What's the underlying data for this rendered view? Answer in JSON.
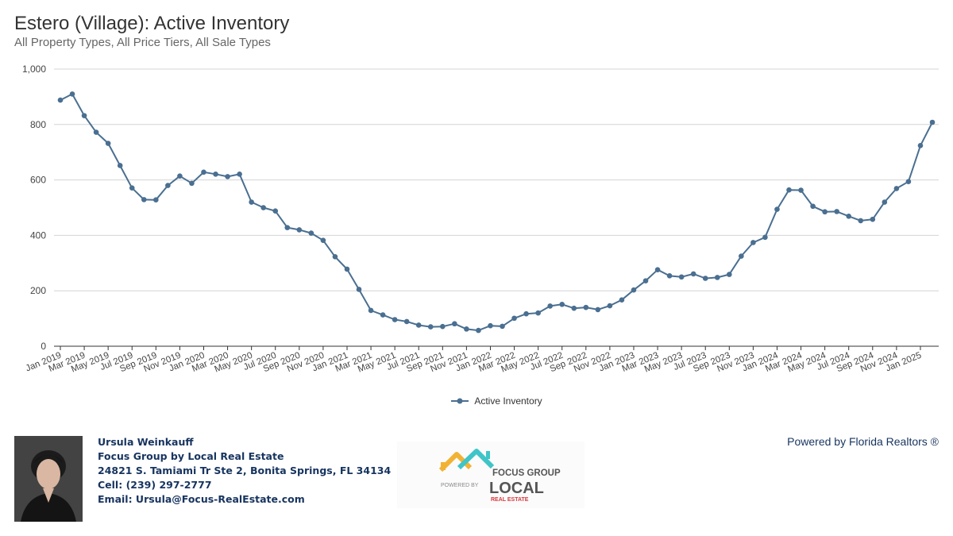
{
  "header": {
    "title": "Estero (Village): Active Inventory",
    "subtitle": "All Property Types, All Price Tiers, All Sale Types"
  },
  "chart_data": {
    "type": "line",
    "title": "Estero (Village): Active Inventory",
    "subtitle": "All Property Types, All Price Tiers, All Sale Types",
    "xlabel": "",
    "ylabel": "",
    "ylim": [
      0,
      1000
    ],
    "yticks": [
      0,
      200,
      400,
      600,
      800,
      1000
    ],
    "ytick_labels": [
      "0",
      "200",
      "400",
      "600",
      "800",
      "1,000"
    ],
    "grid": true,
    "legend_position": "bottom-center",
    "x_tick_labels": [
      "Jan 2019",
      "Mar 2019",
      "May 2019",
      "Jul 2019",
      "Sep 2019",
      "Nov 2019",
      "Jan 2020",
      "Mar 2020",
      "May 2020",
      "Jul 2020",
      "Sep 2020",
      "Nov 2020",
      "Jan 2021",
      "Mar 2021",
      "May 2021",
      "Jul 2021",
      "Sep 2021",
      "Nov 2021",
      "Jan 2022",
      "Mar 2022",
      "May 2022",
      "Jul 2022",
      "Sep 2022",
      "Nov 2022",
      "Jan 2023",
      "Mar 2023",
      "May 2023",
      "Jul 2023",
      "Sep 2023",
      "Nov 2023",
      "Jan 2024",
      "Mar 2024",
      "May 2024",
      "Jul 2024",
      "Sep 2024",
      "Nov 2024",
      "Jan 2025"
    ],
    "x": [
      "Jan 2019",
      "Feb 2019",
      "Mar 2019",
      "Apr 2019",
      "May 2019",
      "Jun 2019",
      "Jul 2019",
      "Aug 2019",
      "Sep 2019",
      "Oct 2019",
      "Nov 2019",
      "Dec 2019",
      "Jan 2020",
      "Feb 2020",
      "Mar 2020",
      "Apr 2020",
      "May 2020",
      "Jun 2020",
      "Jul 2020",
      "Aug 2020",
      "Sep 2020",
      "Oct 2020",
      "Nov 2020",
      "Dec 2020",
      "Jan 2021",
      "Feb 2021",
      "Mar 2021",
      "Apr 2021",
      "May 2021",
      "Jun 2021",
      "Jul 2021",
      "Aug 2021",
      "Sep 2021",
      "Oct 2021",
      "Nov 2021",
      "Dec 2021",
      "Jan 2022",
      "Feb 2022",
      "Mar 2022",
      "Apr 2022",
      "May 2022",
      "Jun 2022",
      "Jul 2022",
      "Aug 2022",
      "Sep 2022",
      "Oct 2022",
      "Nov 2022",
      "Dec 2022",
      "Jan 2023",
      "Feb 2023",
      "Mar 2023",
      "Apr 2023",
      "May 2023",
      "Jun 2023",
      "Jul 2023",
      "Aug 2023",
      "Sep 2023",
      "Oct 2023",
      "Nov 2023",
      "Dec 2023",
      "Jan 2024",
      "Feb 2024",
      "Mar 2024",
      "Apr 2024",
      "May 2024",
      "Jun 2024",
      "Jul 2024",
      "Aug 2024",
      "Sep 2024",
      "Oct 2024",
      "Nov 2024",
      "Dec 2024",
      "Jan 2025",
      "Feb 2025"
    ],
    "series": [
      {
        "name": "Active Inventory",
        "color": "#4a6f91",
        "values": [
          888,
          910,
          832,
          772,
          732,
          652,
          571,
          529,
          528,
          580,
          614,
          588,
          628,
          621,
          612,
          621,
          520,
          500,
          488,
          428,
          420,
          408,
          382,
          323,
          278,
          205,
          129,
          113,
          96,
          89,
          76,
          70,
          71,
          81,
          62,
          57,
          74,
          72,
          101,
          117,
          120,
          145,
          151,
          137,
          140,
          132,
          146,
          167,
          203,
          236,
          276,
          254,
          250,
          261,
          245,
          248,
          259,
          325,
          374,
          393,
          494,
          564,
          563,
          505,
          485,
          486,
          469,
          453,
          458,
          520,
          569,
          594,
          724,
          808
        ]
      }
    ]
  },
  "legend": {
    "label": "Active Inventory"
  },
  "agent": {
    "name": "Ursula Weinkauff",
    "company": "Focus Group by Local Real Estate",
    "address": "24821 S. Tamiami Tr Ste 2, Bonita Springs, FL 34134",
    "cell": "Cell: (239) 297-2777",
    "email": "Email: Ursula@Focus-RealEstate.com"
  },
  "logo": {
    "line1": "FOCUS GROUP",
    "line2": "POWERED BY",
    "line3": "LOCAL",
    "line4": "REAL ESTATE"
  },
  "powered_by": "Powered by Florida Realtors ®"
}
